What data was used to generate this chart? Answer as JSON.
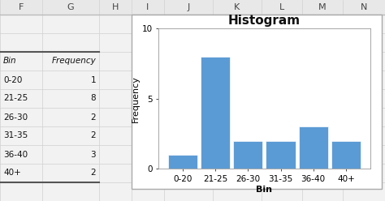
{
  "bins": [
    "0-20",
    "21-25",
    "26-30",
    "31-35",
    "36-40",
    "40+"
  ],
  "frequencies": [
    1,
    8,
    2,
    2,
    3,
    2
  ],
  "bar_color": "#5B9BD5",
  "bar_edge_color": "#FFFFFF",
  "title": "Histogram",
  "xlabel": "Bin",
  "ylabel": "Frequency",
  "ylim": [
    0,
    10
  ],
  "yticks": [
    0,
    5,
    10
  ],
  "title_fontsize": 11,
  "axis_label_fontsize": 8,
  "tick_fontsize": 7.5,
  "col_headers": [
    "F",
    "G",
    "H",
    "I",
    "J",
    "K",
    "L",
    "M",
    "N"
  ],
  "table_headers": [
    "Bin",
    "Frequency"
  ],
  "table_bins": [
    "0-20",
    "21-25",
    "26-30",
    "31-35",
    "36-40",
    "40+"
  ],
  "table_freqs": [
    "1",
    "8",
    "2",
    "2",
    "3",
    "2"
  ],
  "spreadsheet_bg": "#F2F2F2",
  "cell_border_color": "#D0D0D0",
  "col_header_bg": "#E0E0E0",
  "chart_bg": "#FFFFFF",
  "chart_border": "#AAAAAA"
}
